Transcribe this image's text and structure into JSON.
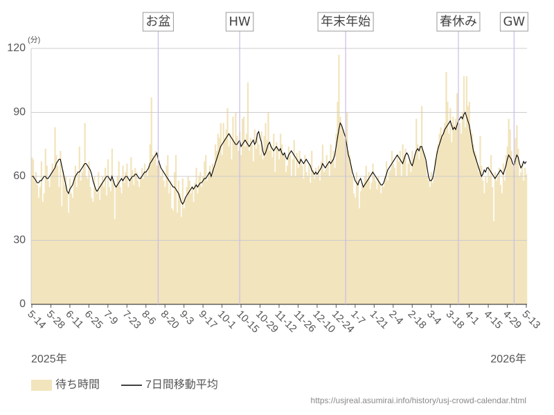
{
  "chart_data": {
    "type": "bar",
    "y_unit": "(分)",
    "year_labels": [
      "2025年",
      "2026年"
    ],
    "source": "https://usjreal.asumirai.info/history/usj-crowd-calendar.html",
    "ylim": [
      0,
      120
    ],
    "yticks": [
      0,
      30,
      60,
      90,
      120
    ],
    "grid": true,
    "annotations": [
      {
        "label": "お盆",
        "index": 93
      },
      {
        "label": "HW",
        "index": 153
      },
      {
        "label": "年末年始",
        "index": 231
      },
      {
        "label": "春休み",
        "index": 314
      },
      {
        "label": "GW",
        "index": 355
      }
    ],
    "categories": [
      "5-14",
      null,
      null,
      null,
      null,
      null,
      null,
      null,
      null,
      null,
      null,
      null,
      null,
      null,
      "5-28",
      null,
      null,
      null,
      null,
      null,
      null,
      null,
      null,
      null,
      null,
      null,
      null,
      null,
      "6-11",
      null,
      null,
      null,
      null,
      null,
      null,
      null,
      null,
      null,
      null,
      null,
      null,
      null,
      "6-25",
      null,
      null,
      null,
      null,
      null,
      null,
      null,
      null,
      null,
      null,
      null,
      null,
      null,
      "7-9",
      null,
      null,
      null,
      null,
      null,
      null,
      null,
      null,
      null,
      null,
      null,
      null,
      null,
      "7-23",
      null,
      null,
      null,
      null,
      null,
      null,
      null,
      null,
      null,
      null,
      null,
      null,
      null,
      "8-6",
      null,
      null,
      null,
      null,
      null,
      null,
      null,
      null,
      null,
      null,
      null,
      null,
      null,
      "8-20",
      null,
      null,
      null,
      null,
      null,
      null,
      null,
      null,
      null,
      null,
      null,
      null,
      null,
      "9-3",
      null,
      null,
      null,
      null,
      null,
      null,
      null,
      null,
      null,
      null,
      null,
      null,
      null,
      "9-17",
      null,
      null,
      null,
      null,
      null,
      null,
      null,
      null,
      null,
      null,
      null,
      null,
      null,
      "10-1",
      null,
      null,
      null,
      null,
      null,
      null,
      null,
      null,
      null,
      null,
      null,
      null,
      null,
      "10-15",
      null,
      null,
      null,
      null,
      null,
      null,
      null,
      null,
      null,
      null,
      null,
      null,
      null,
      "10-29",
      null,
      null,
      null,
      null,
      null,
      null,
      null,
      null,
      null,
      null,
      null,
      null,
      null,
      "11-12",
      null,
      null,
      null,
      null,
      null,
      null,
      null,
      null,
      null,
      null,
      null,
      null,
      null,
      "11-26",
      null,
      null,
      null,
      null,
      null,
      null,
      null,
      null,
      null,
      null,
      null,
      null,
      null,
      "12-10",
      null,
      null,
      null,
      null,
      null,
      null,
      null,
      null,
      null,
      null,
      null,
      null,
      null,
      "12-24",
      null,
      null,
      null,
      null,
      null,
      null,
      null,
      null,
      null,
      null,
      null,
      null,
      null,
      "1-7",
      null,
      null,
      null,
      null,
      null,
      null,
      null,
      null,
      null,
      null,
      null,
      null,
      null,
      "1-21",
      null,
      null,
      null,
      null,
      null,
      null,
      null,
      null,
      null,
      null,
      null,
      null,
      null,
      "2-4",
      null,
      null,
      null,
      null,
      null,
      null,
      null,
      null,
      null,
      null,
      null,
      null,
      null,
      "2-18",
      null,
      null,
      null,
      null,
      null,
      null,
      null,
      null,
      null,
      null,
      null,
      null,
      null,
      "3-4",
      null,
      null,
      null,
      null,
      null,
      null,
      null,
      null,
      null,
      null,
      null,
      null,
      null,
      "3-18",
      null,
      null,
      null,
      null,
      null,
      null,
      null,
      null,
      null,
      null,
      null,
      null,
      null,
      "4-1",
      null,
      null,
      null,
      null,
      null,
      null,
      null,
      null,
      null,
      null,
      null,
      null,
      null,
      "4-15",
      null,
      null,
      null,
      null,
      null,
      null,
      null,
      null,
      null,
      null,
      null,
      null,
      null,
      "4-29",
      null,
      null,
      null,
      null,
      null,
      null,
      null,
      null,
      null,
      null,
      null,
      null,
      null,
      "5-13"
    ],
    "series": [
      {
        "name": "待ち時間",
        "type": "bar",
        "color": "#f2e4bc",
        "values": [
          69,
          68,
          58,
          62,
          56,
          50,
          55,
          67,
          48,
          52,
          73,
          65,
          58,
          55,
          61,
          66,
          63,
          83,
          70,
          65,
          55,
          72,
          46,
          63,
          56,
          60,
          52,
          43,
          59,
          52,
          50,
          60,
          65,
          55,
          61,
          74,
          58,
          62,
          66,
          85,
          60,
          59,
          67,
          55,
          50,
          48,
          60,
          54,
          52,
          62,
          49,
          57,
          60,
          55,
          64,
          51,
          68,
          55,
          53,
          73,
          58,
          40,
          55,
          60,
          67,
          55,
          52,
          65,
          57,
          62,
          66,
          55,
          58,
          69,
          63,
          56,
          64,
          62,
          58,
          55,
          60,
          64,
          59,
          66,
          62,
          60,
          65,
          75,
          97,
          70,
          68,
          72,
          65,
          70,
          66,
          60,
          63,
          58,
          55,
          65,
          70,
          52,
          58,
          45,
          44,
          62,
          70,
          43,
          58,
          52,
          41,
          59,
          45,
          50,
          55,
          60,
          58,
          52,
          55,
          48,
          57,
          64,
          52,
          60,
          62,
          55,
          60,
          67,
          70,
          58,
          62,
          65,
          60,
          66,
          63,
          75,
          72,
          80,
          78,
          85,
          70,
          85,
          78,
          82,
          92,
          74,
          80,
          68,
          88,
          76,
          90,
          79,
          72,
          81,
          70,
          87,
          88,
          74,
          80,
          104,
          72,
          78,
          75,
          67,
          82,
          73,
          80,
          75,
          70,
          81,
          68,
          79,
          85,
          77,
          90,
          72,
          75,
          69,
          80,
          62,
          76,
          73,
          68,
          80,
          75,
          70,
          71,
          62,
          65,
          74,
          70,
          60,
          68,
          77,
          60,
          71,
          64,
          72,
          68,
          65,
          59,
          70,
          62,
          60,
          66,
          57,
          72,
          63,
          59,
          64,
          60,
          65,
          58,
          67,
          75,
          62,
          63,
          70,
          66,
          60,
          75,
          68,
          72,
          64,
          80,
          95,
          117,
          88,
          84,
          82,
          78,
          80,
          90,
          72,
          70,
          65,
          60,
          52,
          50,
          62,
          58,
          45,
          53,
          57,
          55,
          60,
          65,
          58,
          62,
          54,
          57,
          66,
          60,
          58,
          54,
          60,
          57,
          52,
          56,
          55,
          60,
          67,
          58,
          62,
          63,
          72,
          66,
          64,
          60,
          70,
          67,
          72,
          60,
          75,
          70,
          73,
          60,
          66,
          68,
          62,
          72,
          68,
          70,
          87,
          75,
          68,
          74,
          93,
          72,
          70,
          67,
          60,
          58,
          55,
          62,
          57,
          60,
          68,
          72,
          75,
          80,
          83,
          78,
          82,
          85,
          109,
          95,
          80,
          92,
          76,
          88,
          84,
          87,
          99,
          82,
          85,
          80,
          90,
          107,
          83,
          107,
          93,
          95,
          82,
          80,
          75,
          72,
          70,
          66,
          62,
          79,
          65,
          58,
          52,
          60,
          57,
          65,
          60,
          70,
          55,
          39,
          62,
          58,
          60,
          64,
          56,
          52,
          66,
          58,
          70,
          74,
          87,
          82,
          72,
          65,
          63,
          78,
          84,
          73,
          60,
          62,
          66,
          58,
          64,
          61
        ]
      },
      {
        "name": "7日間移動平均",
        "type": "line",
        "color": "#000000",
        "values": [
          60,
          60,
          59,
          58,
          57,
          57,
          58,
          58,
          59,
          60,
          60,
          59,
          59,
          60,
          61,
          62,
          63,
          64,
          66,
          67,
          68,
          68,
          65,
          62,
          59,
          56,
          53,
          52,
          54,
          55,
          56,
          58,
          60,
          61,
          62,
          62,
          63,
          64,
          65,
          66,
          66,
          65,
          64,
          63,
          61,
          58,
          56,
          54,
          53,
          54,
          55,
          56,
          57,
          58,
          59,
          60,
          60,
          59,
          58,
          60,
          58,
          56,
          55,
          56,
          57,
          58,
          59,
          58,
          59,
          60,
          60,
          59,
          58,
          59,
          60,
          60,
          61,
          61,
          60,
          59,
          59,
          60,
          61,
          62,
          62,
          63,
          64,
          66,
          67,
          68,
          69,
          70,
          71,
          68,
          66,
          64,
          63,
          62,
          61,
          60,
          59,
          58,
          57,
          56,
          55,
          55,
          54,
          53,
          52,
          50,
          48,
          47,
          48,
          50,
          51,
          52,
          53,
          54,
          55,
          54,
          55,
          56,
          55,
          56,
          57,
          57,
          58,
          59,
          59,
          60,
          61,
          62,
          60,
          62,
          64,
          66,
          68,
          70,
          72,
          74,
          75,
          76,
          77,
          78,
          79,
          80,
          79,
          78,
          77,
          76,
          75,
          75,
          76,
          77,
          74,
          75,
          76,
          77,
          76,
          75,
          74,
          75,
          76,
          77,
          75,
          76,
          80,
          81,
          78,
          76,
          72,
          70,
          71,
          73,
          75,
          76,
          74,
          73,
          72,
          73,
          74,
          73,
          72,
          73,
          71,
          70,
          71,
          69,
          68,
          70,
          71,
          72,
          71,
          70,
          69,
          68,
          67,
          66,
          68,
          67,
          66,
          67,
          68,
          67,
          66,
          65,
          63,
          62,
          61,
          62,
          61,
          62,
          63,
          64,
          66,
          65,
          64,
          65,
          66,
          67,
          66,
          67,
          68,
          70,
          74,
          78,
          82,
          85,
          84,
          82,
          80,
          78,
          74,
          70,
          68,
          65,
          62,
          60,
          58,
          57,
          56,
          58,
          59,
          57,
          55,
          56,
          57,
          58,
          59,
          60,
          61,
          62,
          61,
          60,
          59,
          58,
          57,
          56,
          56,
          57,
          59,
          61,
          63,
          64,
          65,
          66,
          67,
          68,
          69,
          70,
          69,
          68,
          67,
          66,
          68,
          70,
          71,
          70,
          68,
          66,
          65,
          67,
          70,
          72,
          73,
          72,
          74,
          74,
          72,
          70,
          68,
          64,
          60,
          58,
          58,
          59,
          62,
          66,
          70,
          73,
          75,
          77,
          79,
          80,
          82,
          83,
          84,
          85,
          86,
          84,
          82,
          83,
          82,
          84,
          86,
          87,
          88,
          87,
          89,
          90,
          88,
          86,
          84,
          80,
          76,
          72,
          70,
          68,
          66,
          64,
          62,
          60,
          61,
          63,
          62,
          64,
          64,
          63,
          62,
          61,
          60,
          59,
          60,
          61,
          62,
          63,
          62,
          61,
          63,
          65,
          68,
          70,
          69,
          68,
          66,
          65,
          68,
          70,
          69,
          66,
          64,
          65,
          67,
          66,
          67
        ]
      }
    ]
  }
}
